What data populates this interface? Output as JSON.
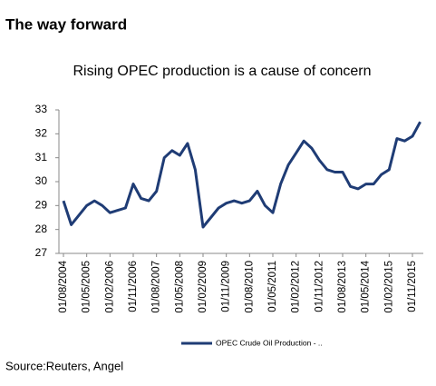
{
  "heading": "The way forward",
  "chart_data": {
    "type": "line",
    "title": "Rising OPEC production is a cause of concern",
    "categories": [
      "01/08/2004",
      null,
      null,
      "01/05/2005",
      null,
      null,
      "01/02/2006",
      null,
      null,
      "01/11/2006",
      null,
      null,
      "01/08/2007",
      null,
      null,
      "01/05/2008",
      null,
      null,
      "01/02/2009",
      null,
      null,
      "01/11/2009",
      null,
      null,
      "01/08/2010",
      null,
      null,
      "01/05/2011",
      null,
      null,
      "01/02/2012",
      null,
      null,
      "01/11/2012",
      null,
      null,
      "01/08/2013",
      null,
      null,
      "01/05/2014",
      null,
      null,
      "01/02/2015",
      null,
      null,
      "01/11/2015",
      null
    ],
    "series": [
      {
        "name": "OPEC Crude Oil Production - ..",
        "color": "#1f3c75",
        "values": [
          29.2,
          28.2,
          28.6,
          29.0,
          29.2,
          29.0,
          28.7,
          28.8,
          28.9,
          29.9,
          29.3,
          29.2,
          29.6,
          31.0,
          31.3,
          31.1,
          31.6,
          30.5,
          28.1,
          28.5,
          28.9,
          29.1,
          29.2,
          29.1,
          29.2,
          29.6,
          29.0,
          28.7,
          29.9,
          30.7,
          31.2,
          31.7,
          31.4,
          30.9,
          30.5,
          30.4,
          30.4,
          29.8,
          29.7,
          29.9,
          29.9,
          30.3,
          30.5,
          31.8,
          31.7,
          31.9,
          32.5
        ]
      }
    ],
    "ylim": [
      27,
      33
    ],
    "yticks": [
      27,
      28,
      29,
      30,
      31,
      32,
      33
    ],
    "grid": false,
    "legend": "bottom"
  },
  "source": "Source:Reuters, Angel"
}
